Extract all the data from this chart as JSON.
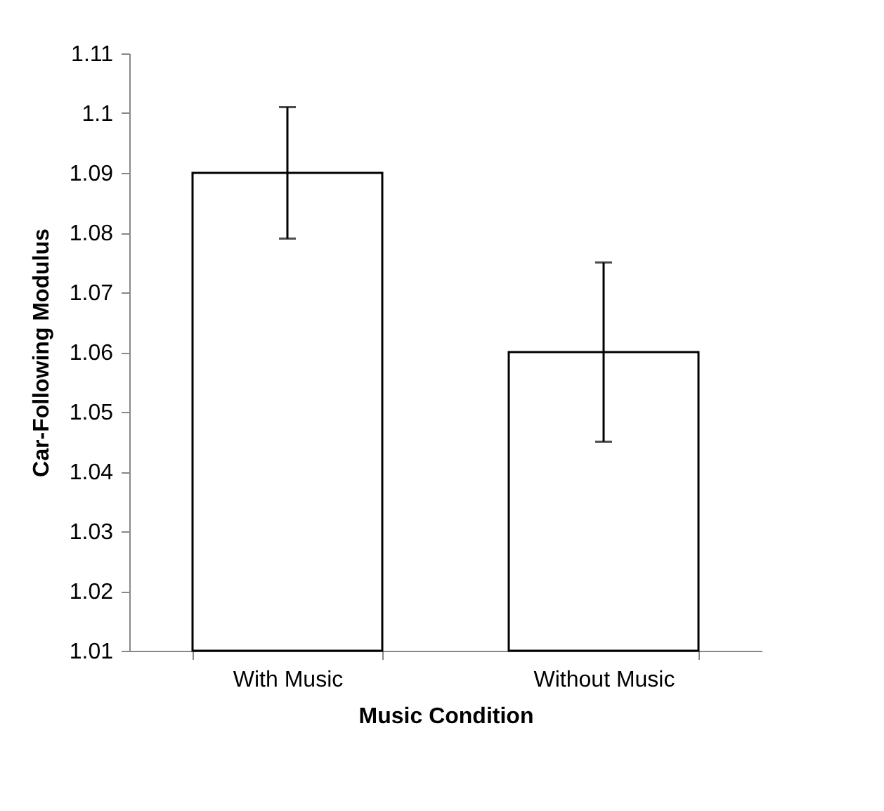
{
  "chart_data": {
    "type": "bar",
    "xlabel": "Music Condition",
    "ylabel": "Car-Following Modulus",
    "categories": [
      "With Music",
      "Without Music"
    ],
    "values": [
      1.09,
      1.06
    ],
    "errors": [
      0.011,
      0.015
    ],
    "color": "#ffffff",
    "ylim": [
      1.01,
      1.11
    ],
    "yticks": [
      1.01,
      1.02,
      1.03,
      1.04,
      1.05,
      1.06,
      1.07,
      1.08,
      1.09,
      1.1,
      1.11
    ],
    "grid": false
  }
}
